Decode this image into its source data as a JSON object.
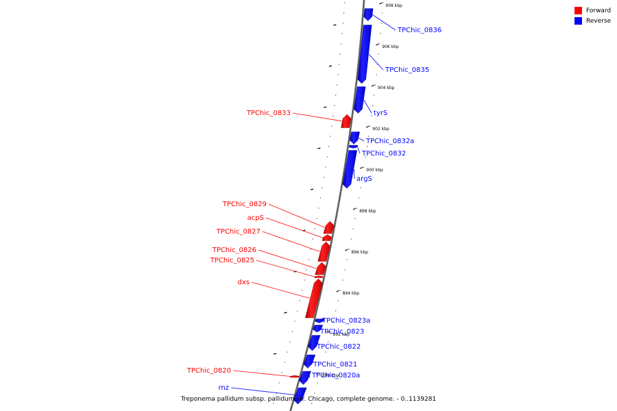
{
  "legend": {
    "forward_label": "Forward",
    "reverse_label": "Reverse",
    "forward_color": "#ff0000",
    "reverse_color": "#0000ff"
  },
  "caption": "Treponema pallidum subsp. pallidum str. Chicago, complete genome. - 0..1139281",
  "ticks": [
    {
      "kbp": 908,
      "label": "908 kbp"
    },
    {
      "kbp": 906,
      "label": "906 kbp"
    },
    {
      "kbp": 904,
      "label": "904 kbp"
    },
    {
      "kbp": 902,
      "label": "902 kbp"
    },
    {
      "kbp": 900,
      "label": "900 kbp"
    },
    {
      "kbp": 898,
      "label": "898 kbp"
    },
    {
      "kbp": 896,
      "label": "896 kbp"
    },
    {
      "kbp": 894,
      "label": "894 kbp"
    },
    {
      "kbp": 892,
      "label": "892 kbp"
    },
    {
      "kbp": 890,
      "label": "890 kbp"
    }
  ],
  "genes": [
    {
      "name": "TPChic_0836",
      "strand": "reverse",
      "start_kbp": 907.85,
      "end_kbp": 907.25
    },
    {
      "name": "TPChic_0835",
      "strand": "reverse",
      "start_kbp": 907.05,
      "end_kbp": 904.2
    },
    {
      "name": "tyrS",
      "strand": "reverse",
      "start_kbp": 904.05,
      "end_kbp": 902.75
    },
    {
      "name": "TPChic_0833",
      "strand": "forward",
      "start_kbp": 902.7,
      "end_kbp": 902.05
    },
    {
      "name": "TPChic_0832a",
      "strand": "reverse",
      "start_kbp": 901.85,
      "end_kbp": 901.25
    },
    {
      "name": "TPChic_0832",
      "strand": "reverse",
      "start_kbp": 901.2,
      "end_kbp": 901.05
    },
    {
      "name": "argS",
      "strand": "reverse",
      "start_kbp": 900.95,
      "end_kbp": 899.1
    },
    {
      "name": "TPChic_0829",
      "strand": "forward",
      "start_kbp": 897.5,
      "end_kbp": 896.9
    },
    {
      "name": "acpS",
      "strand": "forward",
      "start_kbp": 896.85,
      "end_kbp": 896.55
    },
    {
      "name": "TPChic_0827",
      "strand": "forward",
      "start_kbp": 896.5,
      "end_kbp": 895.55
    },
    {
      "name": "TPChic_0826",
      "strand": "forward",
      "start_kbp": 895.5,
      "end_kbp": 894.9
    },
    {
      "name": "TPChic_0825",
      "strand": "forward",
      "start_kbp": 894.85,
      "end_kbp": 894.8
    },
    {
      "name": "dxs",
      "strand": "forward",
      "start_kbp": 894.7,
      "end_kbp": 892.8
    },
    {
      "name": "TPChic_0823a",
      "strand": "reverse",
      "start_kbp": 892.75,
      "end_kbp": 892.55
    },
    {
      "name": "TPChic_0823",
      "strand": "reverse",
      "start_kbp": 892.45,
      "end_kbp": 892.1
    },
    {
      "name": "TPChic_0822",
      "strand": "reverse",
      "start_kbp": 891.95,
      "end_kbp": 891.2
    },
    {
      "name": "TPChic_0821",
      "strand": "reverse",
      "start_kbp": 891.0,
      "end_kbp": 890.35
    },
    {
      "name": "TPChic_0820a",
      "strand": "reverse",
      "start_kbp": 890.2,
      "end_kbp": 889.55
    },
    {
      "name": "TPChic_0820",
      "strand": "forward",
      "start_kbp": 890.0,
      "end_kbp": 889.97
    },
    {
      "name": "rnz",
      "strand": "reverse",
      "start_kbp": 889.4,
      "end_kbp": 888.6
    }
  ]
}
